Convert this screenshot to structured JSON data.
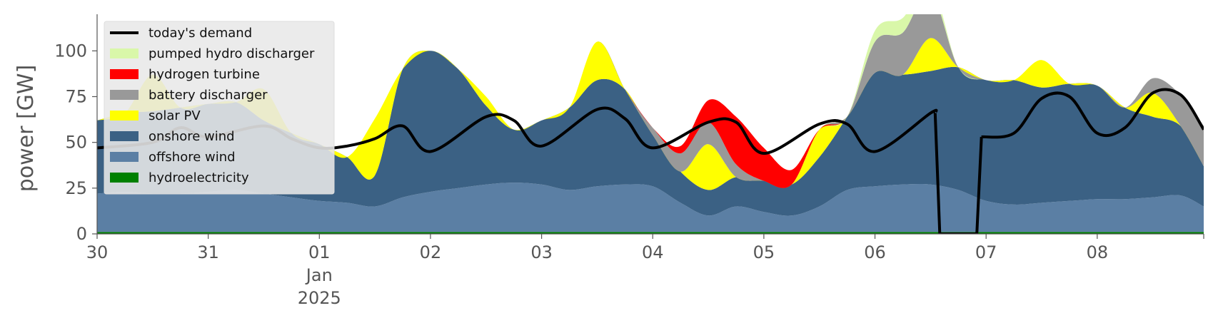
{
  "chart_data": {
    "type": "area",
    "xlabel": "",
    "ylabel": "power [GW]",
    "ylim": [
      0,
      120
    ],
    "yticks": [
      0,
      25,
      50,
      75,
      100
    ],
    "xlim": [
      "2024-12-30T00:00",
      "2025-01-08T23:00"
    ],
    "xticks": [
      {
        "t": "2024-12-30T00:00",
        "lines": [
          "30"
        ]
      },
      {
        "t": "2024-12-31T00:00",
        "lines": [
          "31"
        ]
      },
      {
        "t": "2025-01-01T00:00",
        "lines": [
          "01",
          "Jan",
          "2025"
        ]
      },
      {
        "t": "2025-01-02T00:00",
        "lines": [
          "02"
        ]
      },
      {
        "t": "2025-01-03T00:00",
        "lines": [
          "03"
        ]
      },
      {
        "t": "2025-01-04T00:00",
        "lines": [
          "04"
        ]
      },
      {
        "t": "2025-01-05T00:00",
        "lines": [
          "05"
        ]
      },
      {
        "t": "2025-01-06T00:00",
        "lines": [
          "06"
        ]
      },
      {
        "t": "2025-01-07T00:00",
        "lines": [
          "07"
        ]
      },
      {
        "t": "2025-01-08T00:00",
        "lines": [
          "08"
        ]
      }
    ],
    "grid": false,
    "legend_position": "top-left",
    "x": [
      "2024-12-30T00:00",
      "2024-12-30T06:00",
      "2024-12-30T12:00",
      "2024-12-30T18:00",
      "2024-12-31T00:00",
      "2024-12-31T06:00",
      "2024-12-31T12:00",
      "2024-12-31T18:00",
      "2025-01-01T00:00",
      "2025-01-01T06:00",
      "2025-01-01T12:00",
      "2025-01-01T18:00",
      "2025-01-02T00:00",
      "2025-01-02T06:00",
      "2025-01-02T12:00",
      "2025-01-02T18:00",
      "2025-01-03T00:00",
      "2025-01-03T06:00",
      "2025-01-03T12:00",
      "2025-01-03T18:00",
      "2025-01-04T00:00",
      "2025-01-04T06:00",
      "2025-01-04T12:00",
      "2025-01-04T18:00",
      "2025-01-05T00:00",
      "2025-01-05T06:00",
      "2025-01-05T12:00",
      "2025-01-05T18:00",
      "2025-01-06T00:00",
      "2025-01-06T06:00",
      "2025-01-06T12:00",
      "2025-01-06T18:00",
      "2025-01-07T00:00",
      "2025-01-07T06:00",
      "2025-01-07T12:00",
      "2025-01-07T18:00",
      "2025-01-08T00:00",
      "2025-01-08T06:00",
      "2025-01-08T12:00",
      "2025-01-08T18:00",
      "2025-01-08T23:00"
    ],
    "series": [
      {
        "name": "hydroelectricity",
        "color": "#008000",
        "values": [
          1,
          1,
          1,
          1,
          1,
          1,
          1,
          1,
          1,
          1,
          1,
          1,
          1,
          1,
          1,
          1,
          1,
          1,
          1,
          1,
          1,
          1,
          1,
          1,
          1,
          1,
          1,
          1,
          1,
          1,
          1,
          1,
          1,
          1,
          1,
          1,
          1,
          1,
          1,
          1,
          1
        ]
      },
      {
        "name": "offshore wind",
        "color": "#5b7fa4",
        "values": [
          21,
          22,
          21,
          21,
          22,
          23,
          21,
          19,
          17,
          16,
          14,
          19,
          22,
          24,
          26,
          27,
          26,
          23,
          25,
          26,
          25,
          16,
          9,
          14,
          11,
          9,
          14,
          23,
          25,
          26,
          26,
          23,
          17,
          15,
          16,
          17,
          18,
          18,
          19,
          20,
          14
        ]
      },
      {
        "name": "onshore wind",
        "color": "#3b6184",
        "values": [
          40,
          43,
          45,
          47,
          48,
          48,
          40,
          35,
          31,
          25,
          17,
          70,
          77,
          65,
          43,
          29,
          35,
          45,
          58,
          52,
          28,
          17,
          14,
          16,
          17,
          17,
          27,
          40,
          62,
          60,
          62,
          67,
          66,
          68,
          63,
          64,
          62,
          50,
          44,
          38,
          22
        ]
      },
      {
        "name": "solar PV",
        "color": "#ffff00",
        "values": [
          0,
          0,
          20,
          0,
          0,
          0,
          17,
          0,
          0,
          0,
          31,
          0,
          0,
          0,
          5,
          0,
          0,
          0,
          21,
          0,
          0,
          0,
          25,
          0,
          0,
          0,
          15,
          0,
          0,
          0,
          18,
          0,
          0,
          0,
          15,
          0,
          0,
          0,
          13,
          0,
          0
        ]
      },
      {
        "name": "battery discharger",
        "color": "#999999",
        "values": [
          0,
          0,
          0,
          0,
          0,
          0,
          0,
          0,
          0,
          0,
          0,
          0,
          0,
          0,
          0,
          0,
          0,
          0,
          0,
          0,
          4,
          10,
          12,
          7,
          0,
          0,
          0,
          0,
          17,
          23,
          25,
          0,
          0,
          0,
          0,
          0,
          0,
          0,
          8,
          17,
          22
        ]
      },
      {
        "name": "hydrogen turbine",
        "color": "#ff0000",
        "values": [
          0,
          0,
          0,
          0,
          0,
          0,
          0,
          0,
          0,
          0,
          0,
          0,
          0,
          0,
          0,
          0,
          0,
          0,
          0,
          0,
          0,
          4,
          12,
          26,
          18,
          8,
          0,
          0,
          0,
          0,
          0,
          0,
          0,
          0,
          0,
          0,
          0,
          0,
          0,
          0,
          0
        ]
      },
      {
        "name": "pumped hydro discharger",
        "color": "#d9f7a9",
        "values": [
          0,
          0,
          0,
          0,
          0,
          0,
          0,
          0,
          0,
          0,
          0,
          0,
          0,
          0,
          0,
          0,
          0,
          0,
          0,
          0,
          0,
          0,
          0,
          0,
          0,
          0,
          0,
          0,
          6,
          8,
          5,
          0,
          0,
          0,
          0,
          0,
          0,
          0,
          0,
          0,
          0
        ]
      }
    ],
    "demand": {
      "name": "today's demand",
      "color": "#000000",
      "x": [
        "2024-12-30T00:00",
        "2024-12-30T12:00",
        "2024-12-30T18:00",
        "2024-12-31T00:00",
        "2024-12-31T12:00",
        "2024-12-31T18:00",
        "2025-01-01T00:00",
        "2025-01-01T06:00",
        "2025-01-01T12:00",
        "2025-01-01T18:00",
        "2025-01-02T00:00",
        "2025-01-02T12:00",
        "2025-01-02T18:00",
        "2025-01-03T00:00",
        "2025-01-03T12:00",
        "2025-01-03T18:00",
        "2025-01-04T00:00",
        "2025-01-04T12:00",
        "2025-01-04T18:00",
        "2025-01-05T00:00",
        "2025-01-05T12:00",
        "2025-01-05T18:00",
        "2025-01-06T00:00",
        "2025-01-06T12:00",
        "2025-01-06T13:00",
        "2025-01-06T14:00",
        "2025-01-06T22:00",
        "2025-01-06T23:00",
        "2025-01-07T06:00",
        "2025-01-07T12:00",
        "2025-01-07T18:00",
        "2025-01-08T00:00",
        "2025-01-08T06:00",
        "2025-01-08T12:00",
        "2025-01-08T18:00",
        "2025-01-08T23:00"
      ],
      "values": [
        47,
        50,
        58,
        53,
        59,
        52,
        47,
        48,
        52,
        59,
        45,
        64,
        62,
        48,
        68,
        63,
        47,
        61,
        61,
        44,
        60,
        60,
        45,
        66,
        66,
        0,
        0,
        53,
        55,
        74,
        75,
        55,
        58,
        77,
        76,
        57
      ]
    }
  }
}
